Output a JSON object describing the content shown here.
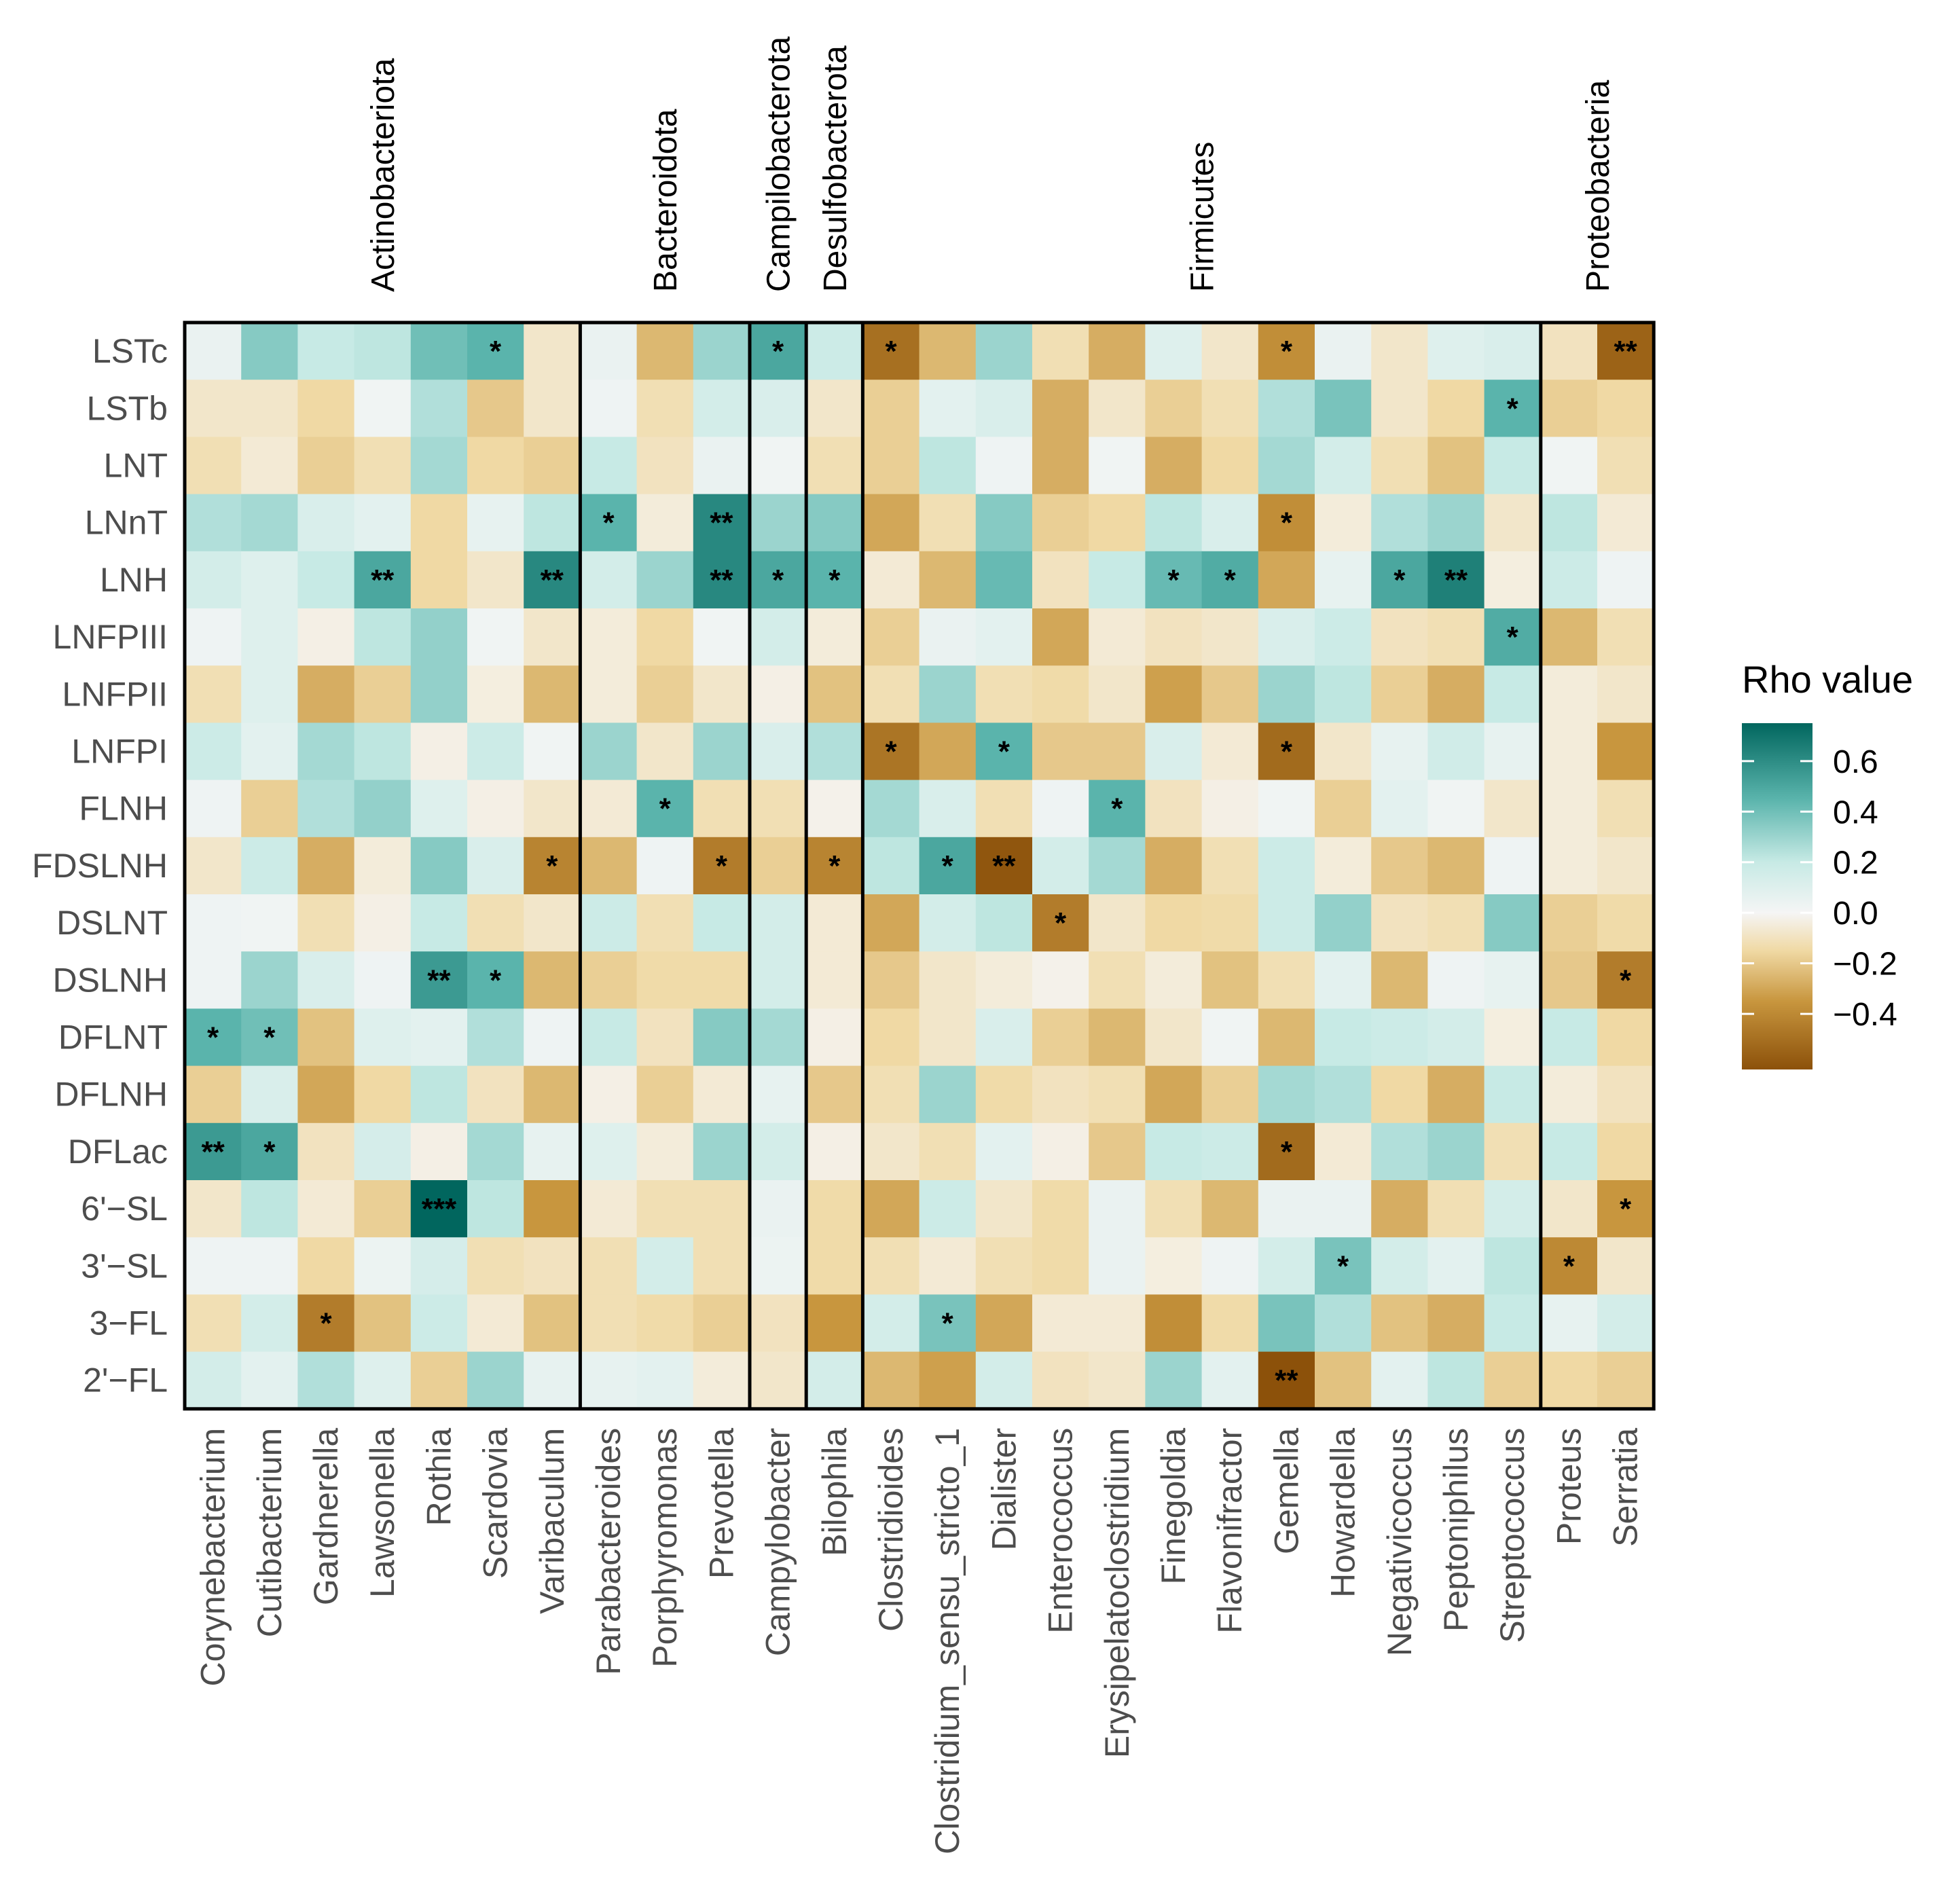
{
  "chart_data": {
    "type": "heatmap",
    "title": "",
    "xlabel": "",
    "ylabel": "",
    "rows": [
      "LSTc",
      "LSTb",
      "LNT",
      "LNnT",
      "LNH",
      "LNFPIII",
      "LNFPII",
      "LNFPI",
      "FLNH",
      "FDSLNH",
      "DSLNT",
      "DSLNH",
      "DFLNT",
      "DFLNH",
      "DFLac",
      "6'−SL",
      "3'−SL",
      "3−FL",
      "2'−FL"
    ],
    "columns": [
      "Corynebacterium",
      "Cutibacterium",
      "Gardnerella",
      "Lawsonella",
      "Rothia",
      "Scardovia",
      "Varibaculum",
      "Parabacteroides",
      "Porphyromonas",
      "Prevotella",
      "Campylobacter",
      "Bilophila",
      "Clostridioides",
      "Clostridium_sensu_stricto_1",
      "Dialister",
      "Enterococcus",
      "Erysipelatoclostridium",
      "Finegoldia",
      "Flavonifractor",
      "Gemella",
      "Howardella",
      "Negativicoccus",
      "Peptoniphilus",
      "Streptococcus",
      "Proteus",
      "Serratia"
    ],
    "phyla": [
      {
        "name": "Actinobacteriota",
        "count": 7
      },
      {
        "name": "Bacteroidota",
        "count": 3
      },
      {
        "name": "Campilobacterota",
        "count": 1
      },
      {
        "name": "Desulfobacterota",
        "count": 1
      },
      {
        "name": "Firmicutes",
        "count": 12
      },
      {
        "name": "Proteobacteria",
        "count": 2
      }
    ],
    "values": [
      [
        0.05,
        0.35,
        0.2,
        0.22,
        0.4,
        0.45,
        -0.08,
        0.05,
        -0.25,
        0.3,
        0.5,
        0.18,
        -0.5,
        -0.25,
        0.3,
        -0.12,
        -0.28,
        0.1,
        -0.08,
        -0.38,
        0.05,
        -0.08,
        0.1,
        0.12,
        -0.1,
        -0.55
      ],
      [
        -0.08,
        -0.08,
        -0.15,
        0.02,
        0.25,
        -0.2,
        -0.08,
        0.03,
        -0.12,
        0.15,
        0.12,
        -0.08,
        -0.18,
        0.08,
        0.12,
        -0.28,
        -0.08,
        -0.18,
        -0.12,
        0.25,
        0.38,
        -0.08,
        -0.15,
        0.45,
        -0.18,
        -0.15
      ],
      [
        -0.12,
        -0.06,
        -0.18,
        -0.12,
        0.28,
        -0.15,
        -0.18,
        0.2,
        -0.1,
        0.05,
        0.02,
        -0.12,
        -0.18,
        0.22,
        0.03,
        -0.28,
        0.02,
        -0.28,
        -0.15,
        0.28,
        0.15,
        -0.12,
        -0.22,
        0.2,
        0.02,
        -0.12
      ],
      [
        0.25,
        0.28,
        0.12,
        0.08,
        -0.15,
        0.06,
        0.22,
        0.45,
        -0.05,
        0.62,
        0.3,
        0.35,
        -0.3,
        -0.12,
        0.35,
        -0.18,
        -0.15,
        0.22,
        0.12,
        -0.38,
        -0.05,
        0.25,
        0.3,
        -0.08,
        0.22,
        -0.06
      ],
      [
        0.15,
        0.1,
        0.2,
        0.5,
        -0.15,
        -0.08,
        0.62,
        0.15,
        0.3,
        0.62,
        0.5,
        0.45,
        -0.06,
        -0.25,
        0.42,
        -0.1,
        0.2,
        0.42,
        0.48,
        -0.3,
        0.06,
        0.5,
        0.65,
        -0.04,
        0.18,
        0.03
      ],
      [
        0.03,
        0.1,
        -0.03,
        0.22,
        0.32,
        0.02,
        -0.08,
        -0.05,
        -0.15,
        0.02,
        0.15,
        -0.05,
        -0.18,
        0.05,
        0.08,
        -0.3,
        -0.06,
        -0.1,
        -0.08,
        0.12,
        0.18,
        -0.1,
        -0.12,
        0.48,
        -0.25,
        -0.12
      ],
      [
        -0.12,
        0.1,
        -0.28,
        -0.18,
        0.32,
        -0.04,
        -0.25,
        -0.05,
        -0.18,
        -0.08,
        -0.03,
        -0.22,
        -0.12,
        0.3,
        -0.12,
        -0.14,
        -0.08,
        -0.32,
        -0.2,
        0.3,
        0.22,
        -0.18,
        -0.28,
        0.2,
        -0.05,
        -0.08
      ],
      [
        0.18,
        0.08,
        0.28,
        0.22,
        -0.03,
        0.18,
        0.02,
        0.3,
        -0.08,
        0.3,
        0.12,
        0.25,
        -0.48,
        -0.3,
        0.45,
        -0.2,
        -0.2,
        0.12,
        -0.06,
        -0.52,
        -0.08,
        0.06,
        0.16,
        0.06,
        -0.05,
        -0.35
      ],
      [
        0.03,
        -0.18,
        0.25,
        0.32,
        0.1,
        -0.03,
        -0.08,
        -0.06,
        0.45,
        -0.12,
        -0.12,
        -0.02,
        0.28,
        0.12,
        -0.12,
        0.03,
        0.45,
        -0.1,
        -0.03,
        0.02,
        -0.18,
        0.08,
        0.02,
        -0.08,
        -0.05,
        -0.12
      ],
      [
        -0.08,
        0.18,
        -0.28,
        -0.05,
        0.35,
        0.12,
        -0.42,
        -0.25,
        0.03,
        -0.45,
        -0.18,
        -0.42,
        0.22,
        0.5,
        -0.6,
        0.15,
        0.28,
        -0.28,
        -0.12,
        0.18,
        -0.05,
        -0.2,
        -0.25,
        0.03,
        -0.05,
        -0.08
      ],
      [
        0.03,
        0.02,
        -0.12,
        -0.03,
        0.2,
        -0.12,
        -0.08,
        0.18,
        -0.12,
        0.2,
        0.15,
        -0.06,
        -0.3,
        0.15,
        0.22,
        -0.45,
        -0.08,
        -0.15,
        -0.14,
        0.18,
        0.32,
        -0.1,
        -0.12,
        0.35,
        -0.18,
        -0.14
      ],
      [
        0.03,
        0.3,
        0.12,
        0.03,
        0.55,
        0.45,
        -0.25,
        -0.18,
        -0.14,
        -0.14,
        0.15,
        -0.06,
        -0.2,
        -0.08,
        -0.05,
        -0.02,
        -0.12,
        -0.05,
        -0.22,
        -0.12,
        0.08,
        -0.25,
        0.03,
        0.06,
        -0.2,
        -0.45
      ],
      [
        0.45,
        0.4,
        -0.22,
        0.1,
        0.08,
        0.25,
        0.03,
        0.2,
        -0.1,
        0.35,
        0.28,
        -0.03,
        -0.15,
        -0.08,
        0.12,
        -0.18,
        -0.25,
        -0.08,
        0.02,
        -0.25,
        0.2,
        0.18,
        0.15,
        -0.04,
        0.2,
        -0.15
      ],
      [
        -0.18,
        0.12,
        -0.3,
        -0.15,
        0.22,
        -0.1,
        -0.25,
        -0.03,
        -0.18,
        -0.06,
        0.06,
        -0.2,
        -0.12,
        0.3,
        -0.14,
        -0.1,
        -0.12,
        -0.3,
        -0.18,
        0.28,
        0.25,
        -0.15,
        -0.28,
        0.2,
        -0.05,
        -0.1
      ],
      [
        0.55,
        0.5,
        -0.1,
        0.14,
        -0.03,
        0.28,
        0.06,
        0.1,
        -0.05,
        0.3,
        0.15,
        -0.03,
        -0.08,
        -0.12,
        0.08,
        -0.03,
        -0.2,
        0.2,
        0.18,
        -0.52,
        -0.06,
        0.25,
        0.3,
        -0.12,
        0.2,
        -0.15
      ],
      [
        -0.08,
        0.22,
        -0.06,
        -0.18,
        0.75,
        0.22,
        -0.35,
        -0.06,
        -0.12,
        -0.12,
        0.05,
        -0.14,
        -0.3,
        0.18,
        -0.08,
        -0.14,
        0.05,
        -0.12,
        -0.25,
        0.05,
        0.05,
        -0.28,
        -0.12,
        0.15,
        -0.08,
        -0.35
      ],
      [
        0.03,
        0.03,
        -0.15,
        0.04,
        0.14,
        -0.12,
        -0.1,
        -0.12,
        0.15,
        -0.12,
        0.04,
        -0.14,
        -0.12,
        -0.06,
        -0.12,
        -0.14,
        0.05,
        -0.04,
        0.03,
        0.15,
        0.38,
        0.15,
        0.08,
        0.22,
        -0.4,
        -0.08
      ],
      [
        -0.12,
        0.15,
        -0.45,
        -0.22,
        0.18,
        -0.06,
        -0.22,
        -0.12,
        -0.14,
        -0.18,
        -0.1,
        -0.35,
        0.15,
        0.38,
        -0.3,
        -0.06,
        -0.06,
        -0.38,
        -0.14,
        0.38,
        0.25,
        -0.22,
        -0.28,
        0.2,
        0.06,
        0.15
      ],
      [
        0.15,
        0.08,
        0.25,
        0.1,
        -0.18,
        0.3,
        0.06,
        0.06,
        0.08,
        -0.05,
        -0.08,
        0.15,
        -0.25,
        -0.32,
        0.15,
        -0.1,
        -0.08,
        0.3,
        0.08,
        -0.62,
        -0.22,
        0.08,
        0.22,
        -0.18,
        -0.15,
        -0.18
      ]
    ],
    "significance": [
      {
        "row": 0,
        "col": 5,
        "label": "*"
      },
      {
        "row": 0,
        "col": 10,
        "label": "*"
      },
      {
        "row": 0,
        "col": 12,
        "label": "*"
      },
      {
        "row": 0,
        "col": 19,
        "label": "*"
      },
      {
        "row": 0,
        "col": 25,
        "label": "**"
      },
      {
        "row": 1,
        "col": 23,
        "label": "*"
      },
      {
        "row": 3,
        "col": 7,
        "label": "*"
      },
      {
        "row": 3,
        "col": 9,
        "label": "**"
      },
      {
        "row": 3,
        "col": 19,
        "label": "*"
      },
      {
        "row": 4,
        "col": 3,
        "label": "**"
      },
      {
        "row": 4,
        "col": 6,
        "label": "**"
      },
      {
        "row": 4,
        "col": 9,
        "label": "**"
      },
      {
        "row": 4,
        "col": 10,
        "label": "*"
      },
      {
        "row": 4,
        "col": 11,
        "label": "*"
      },
      {
        "row": 4,
        "col": 17,
        "label": "*"
      },
      {
        "row": 4,
        "col": 18,
        "label": "*"
      },
      {
        "row": 4,
        "col": 21,
        "label": "*"
      },
      {
        "row": 4,
        "col": 22,
        "label": "**"
      },
      {
        "row": 5,
        "col": 23,
        "label": "*"
      },
      {
        "row": 7,
        "col": 12,
        "label": "*"
      },
      {
        "row": 7,
        "col": 14,
        "label": "*"
      },
      {
        "row": 7,
        "col": 19,
        "label": "*"
      },
      {
        "row": 8,
        "col": 8,
        "label": "*"
      },
      {
        "row": 8,
        "col": 16,
        "label": "*"
      },
      {
        "row": 9,
        "col": 6,
        "label": "*"
      },
      {
        "row": 9,
        "col": 9,
        "label": "*"
      },
      {
        "row": 9,
        "col": 11,
        "label": "*"
      },
      {
        "row": 9,
        "col": 13,
        "label": "*"
      },
      {
        "row": 9,
        "col": 14,
        "label": "**"
      },
      {
        "row": 10,
        "col": 15,
        "label": "*"
      },
      {
        "row": 11,
        "col": 4,
        "label": "**"
      },
      {
        "row": 11,
        "col": 5,
        "label": "*"
      },
      {
        "row": 11,
        "col": 25,
        "label": "*"
      },
      {
        "row": 12,
        "col": 0,
        "label": "*"
      },
      {
        "row": 12,
        "col": 1,
        "label": "*"
      },
      {
        "row": 14,
        "col": 0,
        "label": "**"
      },
      {
        "row": 14,
        "col": 1,
        "label": "*"
      },
      {
        "row": 14,
        "col": 19,
        "label": "*"
      },
      {
        "row": 15,
        "col": 4,
        "label": "***"
      },
      {
        "row": 15,
        "col": 25,
        "label": "*"
      },
      {
        "row": 16,
        "col": 20,
        "label": "*"
      },
      {
        "row": 16,
        "col": 24,
        "label": "*"
      },
      {
        "row": 17,
        "col": 2,
        "label": "*"
      },
      {
        "row": 17,
        "col": 13,
        "label": "*"
      },
      {
        "row": 18,
        "col": 19,
        "label": "**"
      }
    ],
    "color_scale": {
      "stops": [
        {
          "value": -0.62,
          "color": "#8c510a"
        },
        {
          "value": -0.35,
          "color": "#c8963e"
        },
        {
          "value": -0.15,
          "color": "#f0d9a4"
        },
        {
          "value": 0.0,
          "color": "#f5f5f5"
        },
        {
          "value": 0.2,
          "color": "#c7eae5"
        },
        {
          "value": 0.45,
          "color": "#5ab4ac"
        },
        {
          "value": 0.75,
          "color": "#01665e"
        }
      ],
      "range": [
        -0.62,
        0.75
      ]
    },
    "legend": {
      "title": "Rho value",
      "ticks": [
        0.6,
        0.4,
        0.2,
        0.0,
        -0.2,
        -0.4
      ],
      "tick_labels": [
        "0.6",
        "0.4",
        "0.2",
        "0.0",
        "−0.2",
        "−0.4"
      ],
      "placement": "right"
    }
  }
}
